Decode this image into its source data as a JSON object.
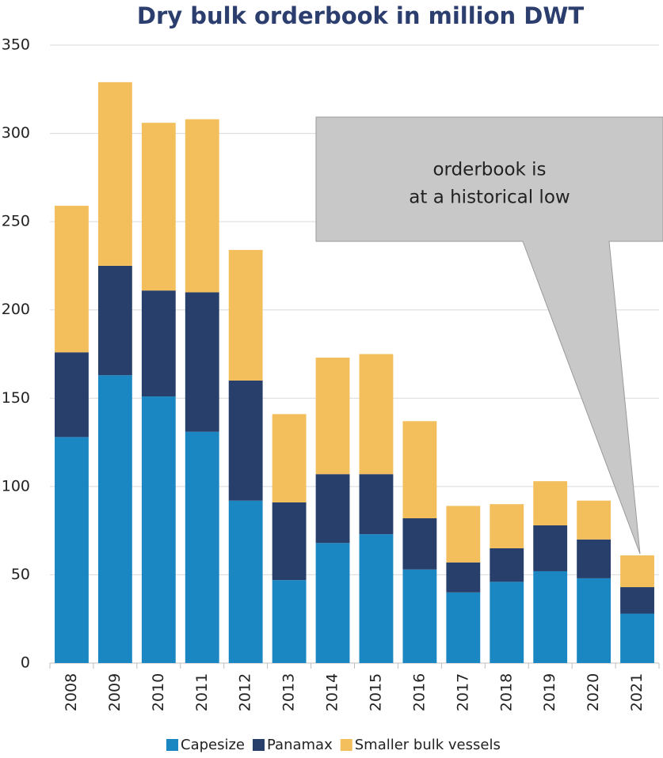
{
  "chart_data": {
    "type": "stacked_bar",
    "title": "Dry bulk orderbook in million DWT",
    "categories": [
      "2008",
      "2009",
      "2010",
      "2011",
      "2012",
      "2013",
      "2014",
      "2015",
      "2016",
      "2017",
      "2018",
      "2019",
      "2020",
      "2021"
    ],
    "series": [
      {
        "name": "Capesize",
        "color": "#1b87c2",
        "values": [
          128,
          163,
          151,
          131,
          92,
          47,
          68,
          73,
          53,
          40,
          46,
          52,
          48,
          28
        ]
      },
      {
        "name": "Panamax",
        "color": "#283f6b",
        "values": [
          48,
          62,
          60,
          79,
          68,
          44,
          39,
          34,
          29,
          17,
          19,
          26,
          22,
          15
        ]
      },
      {
        "name": "Smaller bulk vessels",
        "color": "#f3bf5c",
        "values": [
          83,
          104,
          95,
          98,
          74,
          50,
          66,
          68,
          55,
          32,
          25,
          25,
          22,
          18
        ]
      }
    ],
    "ylim": [
      0,
      350
    ],
    "yticks": [
      0,
      50,
      100,
      150,
      200,
      250,
      300,
      350
    ],
    "annotation": [
      "orderbook is",
      "at a historical low"
    ],
    "legend": "bottom",
    "grid": true
  }
}
